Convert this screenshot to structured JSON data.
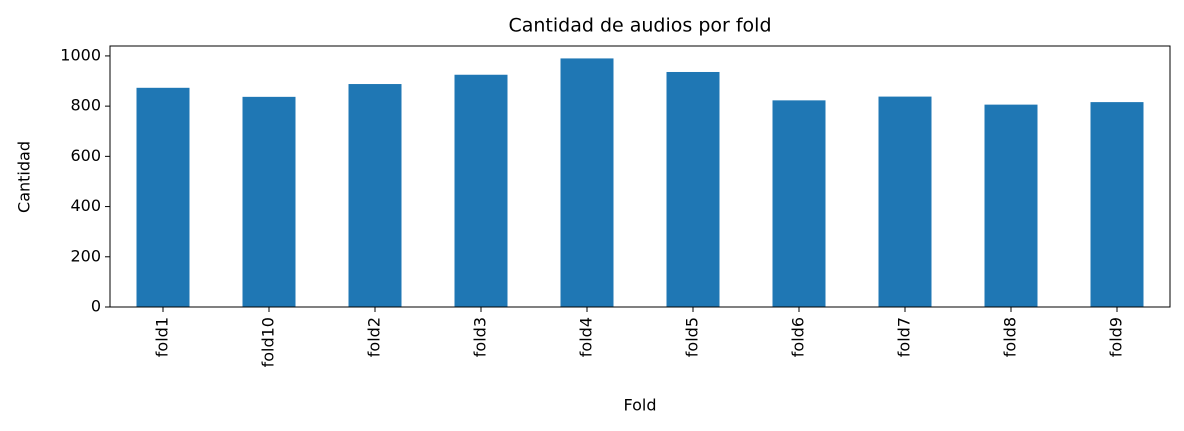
{
  "chart_data": {
    "type": "bar",
    "title": "Cantidad de audios por fold",
    "x_label": "Fold",
    "y_label": "Cantidad",
    "categories": [
      "fold1",
      "fold10",
      "fold2",
      "fold3",
      "fold4",
      "fold5",
      "fold6",
      "fold7",
      "fold8",
      "fold9"
    ],
    "values": [
      873,
      837,
      888,
      925,
      990,
      936,
      823,
      838,
      806,
      816
    ],
    "color": "#1f77b4",
    "ylim": [
      0,
      1039.5
    ],
    "yticks": [
      0,
      200,
      400,
      600,
      800,
      1000
    ],
    "grid": false
  }
}
